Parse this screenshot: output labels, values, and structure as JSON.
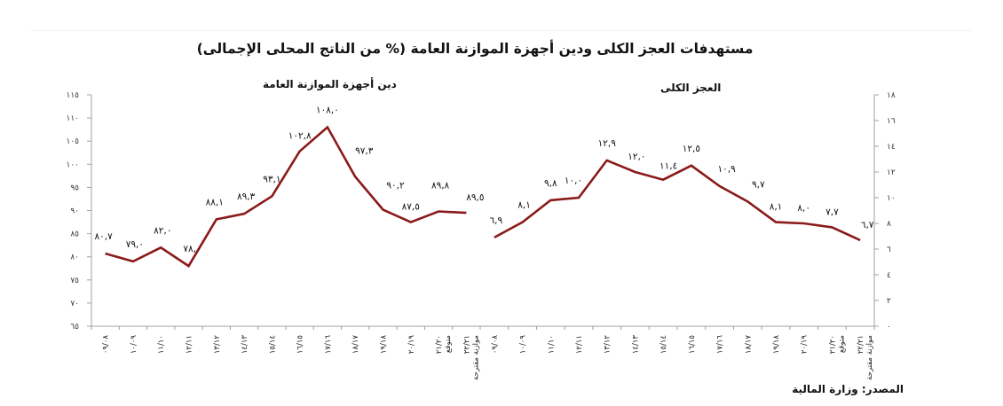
{
  "header": {
    "title": "مستهدفات العجز الكلى ودين أجهزة الموازنة العامة (% من الناتج المحلى الإجمالى)"
  },
  "footer": {
    "source": "المصدر: وزارة المالية"
  },
  "colors": {
    "line": "#8b1a1a",
    "axis": "#a0a0a0",
    "background": "#ffffff"
  },
  "chart_data": [
    {
      "type": "line",
      "title": "دين أجهزة الموازنة العامة",
      "xlabel": "",
      "ylabel": "",
      "ylim": [
        65,
        115
      ],
      "yticks": [
        65,
        70,
        75,
        80,
        85,
        90,
        95,
        100,
        105,
        110,
        115
      ],
      "ytick_labels": [
        "٦٥",
        "٧٠",
        "٧٥",
        "٨٠",
        "٨٥",
        "٩٠",
        "٩٥",
        "١٠٠",
        "١٠٥",
        "١١٠",
        "١١٥"
      ],
      "y_axis_side": "left",
      "grid": false,
      "categories": [
        "٠٩/٠٨",
        "١٠/٠٩",
        "١١/١٠",
        "١٢/١١",
        "١٣/١٢",
        "١٤/١٣",
        "١٥/١٤",
        "١٦/١٥",
        "١٧/١٦",
        "١٨/١٧",
        "١٩/١٨",
        "٢٠/١٩",
        "٢١/٢٠ متوقع",
        "٢٢/٢١ موازنة مقترحة"
      ],
      "values": [
        80.7,
        79.0,
        82.0,
        78.0,
        88.1,
        89.3,
        93.1,
        102.8,
        108.0,
        97.3,
        90.2,
        87.5,
        89.8,
        89.5
      ],
      "value_labels": [
        "٨٠,٧",
        "٧٩,٠",
        "٨٢,٠",
        "٧٨,٠",
        "٨٨,١",
        "٨٩,٣",
        "٩٣,١",
        "١٠٢,٨",
        "١٠٨,٠",
        "٩٧,٣",
        "٩٠,٢",
        "٨٧,٥",
        "٨٩,٨",
        "٨٩,٥"
      ]
    },
    {
      "type": "line",
      "title": "العجز الكلى",
      "xlabel": "",
      "ylabel": "",
      "ylim": [
        0,
        18
      ],
      "yticks": [
        0,
        2,
        4,
        6,
        8,
        10,
        12,
        14,
        16,
        18
      ],
      "ytick_labels": [
        "٠",
        "٢",
        "٤",
        "٦",
        "٨",
        "١٠",
        "١٢",
        "١٤",
        "١٦",
        "١٨"
      ],
      "y_axis_side": "right",
      "grid": false,
      "categories": [
        "٠٩/٠٨",
        "١٠/٠٩",
        "١١/١٠",
        "١٢/١١",
        "١٣/١٢",
        "١٤/١٣",
        "١٥/١٤",
        "١٦/١٥",
        "١٧/١٦",
        "١٨/١٧",
        "١٩/١٨",
        "٢٠/١٩",
        "٢١/٢٠ متوقع",
        "٢٢/٢١ موازنة مقترحة"
      ],
      "values": [
        6.9,
        8.1,
        9.8,
        10.0,
        12.9,
        12.0,
        11.4,
        12.5,
        10.9,
        9.7,
        8.1,
        8.0,
        7.7,
        6.7
      ],
      "value_labels": [
        "٦,٩",
        "٨,١",
        "٩,٨",
        "١٠,٠",
        "١٢,٩",
        "١٢,٠",
        "١١,٤",
        "١٢,٥",
        "١٠,٩",
        "٩,٧",
        "٨,١",
        "٨,٠",
        "٧,٧",
        "٦,٧"
      ]
    }
  ]
}
